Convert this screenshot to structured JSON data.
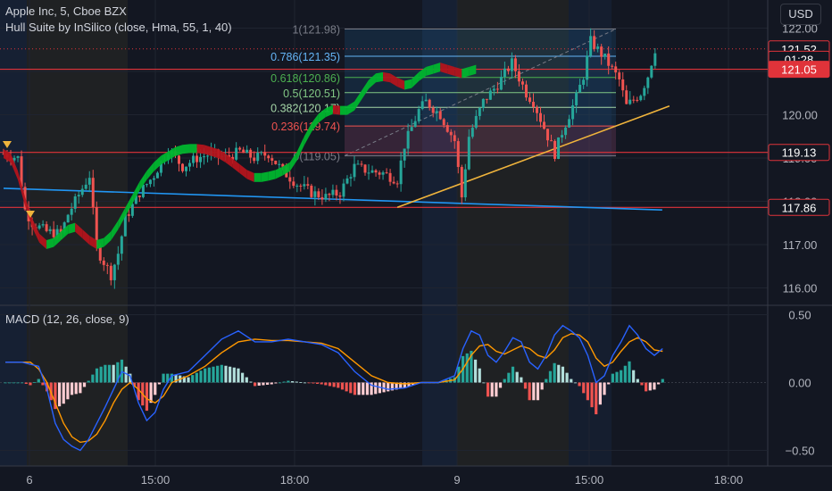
{
  "header": {
    "symbol_line": "Apple Inc, 5, Cboe BZX",
    "indicator_line": "Hull Suite by InSilico (close, Hma, 55, 1, 40)",
    "macd_line": "MACD (12, 26, close, 9)",
    "currency": "USD"
  },
  "colors": {
    "background": "#131722",
    "hull_up": "#00b52e",
    "hull_down": "#b3141c",
    "candle_up": "#26a69a",
    "candle_down": "#ef5350",
    "red_level": "#e0333a",
    "blue_trendline": "#2196f3",
    "yellow_trendline": "#f0b43c",
    "macd_line": "#2962ff",
    "signal_line": "#ff9800"
  },
  "chart_data": [
    {
      "type": "candlestick",
      "title": "Apple Inc, 5, Cboe BZX",
      "ylim": [
        115.4,
        122.5
      ],
      "y_ticks": [
        "122.00",
        "121.00",
        "120.00",
        "119.00",
        "118.00",
        "117.00",
        "116.00"
      ],
      "x_ticks": [
        "6",
        "15:00",
        "18:00",
        "9",
        "15:00",
        "18:00"
      ],
      "price_labels": [
        {
          "text": "121.52",
          "value": 121.52,
          "style": "outline"
        },
        {
          "text": "01:28",
          "value": 121.28,
          "style": "outline"
        },
        {
          "text": "121.05",
          "value": 121.05,
          "style": "filled"
        },
        {
          "text": "119.13",
          "value": 119.13,
          "style": "outline"
        },
        {
          "text": "117.86",
          "value": 117.86,
          "style": "outline"
        }
      ],
      "horizontal_levels": [
        121.52,
        121.05,
        119.13,
        117.86
      ],
      "fibonacci": {
        "high": 121.98,
        "low": 119.05,
        "levels": [
          {
            "label": "1(121.98)",
            "value": 121.98,
            "color": "#787b86"
          },
          {
            "label": "0.786(121.35)",
            "value": 121.35,
            "color": "#64b5f6"
          },
          {
            "label": "0.618(120.86)",
            "value": 120.86,
            "color": "#4caf50"
          },
          {
            "label": "0.5(120.51)",
            "value": 120.51,
            "color": "#81c784"
          },
          {
            "label": "0.382(120.17)",
            "value": 120.17,
            "color": "#a5d6a7"
          },
          {
            "label": "0.236(119.74)",
            "value": 119.74,
            "color": "#ef5350"
          },
          {
            "label": "0(119.05)",
            "value": 119.05,
            "color": "#787b86"
          }
        ]
      },
      "close_path": [
        [
          0,
          119.1
        ],
        [
          2,
          119.0
        ],
        [
          3,
          117.8
        ],
        [
          4,
          117.5
        ],
        [
          6,
          117.3
        ],
        [
          8,
          117.25
        ],
        [
          9,
          117.7
        ],
        [
          10,
          118.0
        ],
        [
          11,
          118.3
        ],
        [
          12,
          118.6
        ],
        [
          13,
          116.9
        ],
        [
          14,
          116.6
        ],
        [
          15,
          116.3
        ],
        [
          16,
          116.8
        ],
        [
          17,
          117.6
        ],
        [
          18,
          117.9
        ],
        [
          19,
          118.2
        ],
        [
          21,
          118.6
        ],
        [
          23,
          119.2
        ],
        [
          25,
          118.8
        ],
        [
          27,
          119.0
        ],
        [
          29,
          119.1
        ],
        [
          31,
          119.0
        ],
        [
          33,
          119.15
        ],
        [
          35,
          119.0
        ],
        [
          37,
          119.1
        ],
        [
          39,
          118.7
        ],
        [
          41,
          118.4
        ],
        [
          43,
          118.2
        ],
        [
          45,
          118.1
        ],
        [
          47,
          118.2
        ],
        [
          48,
          118.5
        ],
        [
          49,
          118.8
        ],
        [
          51,
          118.7
        ],
        [
          53,
          118.65
        ],
        [
          55,
          118.5
        ],
        [
          56,
          119.3
        ],
        [
          58,
          120.1
        ],
        [
          59,
          120.3
        ],
        [
          61,
          120.0
        ],
        [
          63,
          119.4
        ],
        [
          64,
          118.1
        ],
        [
          65,
          119.5
        ],
        [
          67,
          120.3
        ],
        [
          69,
          120.7
        ],
        [
          71,
          121.2
        ],
        [
          73,
          120.5
        ],
        [
          74,
          120.3
        ],
        [
          75,
          119.9
        ],
        [
          77,
          119.1
        ],
        [
          78,
          119.6
        ],
        [
          80,
          120.4
        ],
        [
          81,
          120.9
        ],
        [
          82,
          121.7
        ],
        [
          84,
          121.3
        ],
        [
          86,
          120.8
        ],
        [
          87,
          120.2
        ],
        [
          89,
          120.5
        ],
        [
          90,
          120.9
        ],
        [
          91,
          121.52
        ]
      ],
      "hull_path": [
        [
          0,
          119.1
        ],
        [
          1,
          119.0
        ],
        [
          2,
          118.6
        ],
        [
          3,
          118.0
        ],
        [
          4,
          117.5
        ],
        [
          5,
          117.15
        ],
        [
          6,
          117.0
        ],
        [
          7,
          117.05
        ],
        [
          8,
          117.2
        ],
        [
          9,
          117.35
        ],
        [
          10,
          117.4
        ],
        [
          11,
          117.25
        ],
        [
          12,
          117.1
        ],
        [
          13,
          117.0
        ],
        [
          14,
          117.05
        ],
        [
          15,
          117.2
        ],
        [
          16,
          117.45
        ],
        [
          17,
          117.75
        ],
        [
          18,
          118.05
        ],
        [
          19,
          118.35
        ],
        [
          20,
          118.6
        ],
        [
          21,
          118.8
        ],
        [
          22,
          118.95
        ],
        [
          23,
          119.05
        ],
        [
          24,
          119.15
        ],
        [
          25,
          119.2
        ],
        [
          26,
          119.22
        ],
        [
          27,
          119.22
        ],
        [
          28,
          119.2
        ],
        [
          29,
          119.15
        ],
        [
          30,
          119.1
        ],
        [
          31,
          119.0
        ],
        [
          32,
          118.88
        ],
        [
          33,
          118.75
        ],
        [
          34,
          118.62
        ],
        [
          35,
          118.55
        ],
        [
          36,
          118.55
        ],
        [
          37,
          118.58
        ],
        [
          38,
          118.62
        ],
        [
          39,
          118.7
        ],
        [
          40,
          118.8
        ],
        [
          41,
          119.05
        ],
        [
          42,
          119.4
        ],
        [
          43,
          119.7
        ],
        [
          44,
          119.92
        ],
        [
          45,
          120.05
        ],
        [
          46,
          120.12
        ],
        [
          47,
          120.1
        ],
        [
          48,
          120.1
        ],
        [
          49,
          120.2
        ],
        [
          50,
          120.45
        ],
        [
          51,
          120.7
        ],
        [
          52,
          120.85
        ],
        [
          53,
          120.88
        ],
        [
          54,
          120.85
        ],
        [
          55,
          120.75
        ],
        [
          56,
          120.68
        ],
        [
          57,
          120.72
        ],
        [
          58,
          120.88
        ],
        [
          59,
          121.0
        ],
        [
          60,
          121.05
        ],
        [
          61,
          121.1
        ],
        [
          62,
          121.05
        ],
        [
          63,
          121.0
        ],
        [
          64,
          120.95
        ],
        [
          65,
          121.0
        ],
        [
          66,
          121.05
        ]
      ],
      "trendlines": [
        {
          "name": "blue",
          "from": [
            0,
            118.3
          ],
          "to": [
            92,
            117.8
          ]
        },
        {
          "name": "yellow",
          "from": [
            55,
            117.86
          ],
          "to": [
            93,
            120.2
          ]
        }
      ]
    },
    {
      "type": "line",
      "title": "MACD (12, 26, close, 9)",
      "ylim": [
        -0.65,
        0.6
      ],
      "y_ticks": [
        "0.50",
        "0.00",
        "−0.50"
      ],
      "series": [
        {
          "name": "MACD",
          "path": [
            [
              0,
              0.15
            ],
            [
              2,
              0.15
            ],
            [
              4,
              0.12
            ],
            [
              5,
              -0.05
            ],
            [
              6,
              -0.3
            ],
            [
              7,
              -0.42
            ],
            [
              8,
              -0.47
            ],
            [
              9,
              -0.5
            ],
            [
              10,
              -0.42
            ],
            [
              11,
              -0.3
            ],
            [
              12,
              -0.18
            ],
            [
              13,
              -0.05
            ],
            [
              14,
              0.08
            ],
            [
              15,
              0.05
            ],
            [
              16,
              -0.15
            ],
            [
              17,
              -0.28
            ],
            [
              18,
              -0.22
            ],
            [
              19,
              -0.05
            ],
            [
              20,
              0.05
            ],
            [
              22,
              0.08
            ],
            [
              24,
              0.2
            ],
            [
              26,
              0.32
            ],
            [
              28,
              0.38
            ],
            [
              30,
              0.3
            ],
            [
              32,
              0.3
            ],
            [
              34,
              0.32
            ],
            [
              36,
              0.3
            ],
            [
              38,
              0.28
            ],
            [
              40,
              0.22
            ],
            [
              42,
              0.08
            ],
            [
              44,
              -0.02
            ],
            [
              46,
              -0.05
            ],
            [
              48,
              -0.04
            ],
            [
              50,
              0.0
            ],
            [
              52,
              0.0
            ],
            [
              54,
              0.05
            ],
            [
              55,
              0.25
            ],
            [
              56,
              0.38
            ],
            [
              57,
              0.35
            ],
            [
              58,
              0.2
            ],
            [
              59,
              0.15
            ],
            [
              60,
              0.23
            ],
            [
              61,
              0.33
            ],
            [
              62,
              0.3
            ],
            [
              63,
              0.15
            ],
            [
              64,
              0.1
            ],
            [
              65,
              0.2
            ],
            [
              66,
              0.35
            ],
            [
              67,
              0.42
            ],
            [
              68,
              0.38
            ],
            [
              69,
              0.33
            ],
            [
              70,
              0.2
            ],
            [
              71,
              0.0
            ],
            [
              72,
              0.05
            ],
            [
              73,
              0.2
            ],
            [
              74,
              0.3
            ],
            [
              75,
              0.42
            ],
            [
              76,
              0.35
            ],
            [
              77,
              0.25
            ],
            [
              78,
              0.2
            ],
            [
              79,
              0.25
            ]
          ]
        },
        {
          "name": "Signal",
          "path": [
            [
              0,
              0.15
            ],
            [
              3,
              0.15
            ],
            [
              4,
              0.1
            ],
            [
              5,
              0.0
            ],
            [
              6,
              -0.15
            ],
            [
              7,
              -0.3
            ],
            [
              8,
              -0.4
            ],
            [
              9,
              -0.44
            ],
            [
              10,
              -0.43
            ],
            [
              11,
              -0.38
            ],
            [
              12,
              -0.28
            ],
            [
              13,
              -0.15
            ],
            [
              14,
              -0.05
            ],
            [
              15,
              0.0
            ],
            [
              16,
              -0.05
            ],
            [
              17,
              -0.12
            ],
            [
              18,
              -0.15
            ],
            [
              19,
              -0.1
            ],
            [
              20,
              0.0
            ],
            [
              22,
              0.05
            ],
            [
              24,
              0.12
            ],
            [
              26,
              0.22
            ],
            [
              28,
              0.3
            ],
            [
              30,
              0.32
            ],
            [
              32,
              0.31
            ],
            [
              34,
              0.31
            ],
            [
              36,
              0.3
            ],
            [
              38,
              0.29
            ],
            [
              40,
              0.25
            ],
            [
              42,
              0.15
            ],
            [
              44,
              0.05
            ],
            [
              46,
              0.0
            ],
            [
              48,
              -0.01
            ],
            [
              50,
              0.0
            ],
            [
              52,
              0.0
            ],
            [
              54,
              0.02
            ],
            [
              55,
              0.1
            ],
            [
              56,
              0.2
            ],
            [
              57,
              0.27
            ],
            [
              58,
              0.28
            ],
            [
              59,
              0.23
            ],
            [
              60,
              0.21
            ],
            [
              61,
              0.24
            ],
            [
              62,
              0.27
            ],
            [
              63,
              0.25
            ],
            [
              64,
              0.2
            ],
            [
              65,
              0.18
            ],
            [
              66,
              0.24
            ],
            [
              67,
              0.33
            ],
            [
              68,
              0.36
            ],
            [
              69,
              0.35
            ],
            [
              70,
              0.3
            ],
            [
              71,
              0.18
            ],
            [
              72,
              0.12
            ],
            [
              73,
              0.15
            ],
            [
              74,
              0.23
            ],
            [
              75,
              0.3
            ],
            [
              76,
              0.33
            ],
            [
              77,
              0.3
            ],
            [
              78,
              0.24
            ],
            [
              79,
              0.23
            ]
          ]
        }
      ]
    }
  ]
}
